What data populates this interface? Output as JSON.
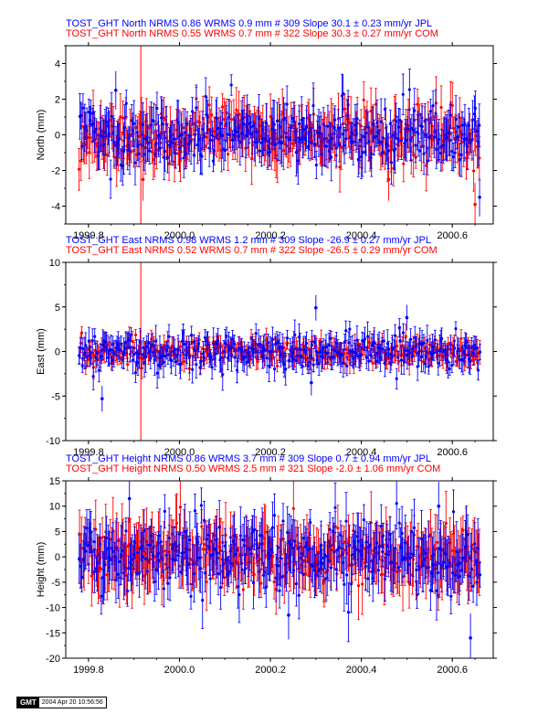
{
  "chart_data": [
    {
      "type": "scatter",
      "component": "North",
      "header_lines": [
        {
          "text": "TOST_GHT North NRMS 0.86 WRMS  0.9 mm # 309 Slope   30.1 ±  0.23 mm/yr JPL",
          "color": "#0000ff"
        },
        {
          "text": "TOST_GHT North NRMS 0.55 WRMS  0.7 mm # 322 Slope   30.3 ±  0.27 mm/yr COM",
          "color": "#ff0000"
        }
      ],
      "ylabel": "North (mm)",
      "xlim": [
        1999.75,
        2000.69
      ],
      "ylim": [
        -5,
        5
      ],
      "yticks": [
        -4,
        -2,
        0,
        2,
        4
      ],
      "xticks": [
        1999.8,
        2000.0,
        2000.2,
        2000.4,
        2000.6
      ],
      "xtick_labels": [
        "1999.8",
        "2000.0",
        "2000.2",
        "2000.4",
        "2000.6"
      ],
      "series": [
        {
          "n": 309,
          "color": "#0000ff",
          "scatter_sd": 0.8,
          "err": 0.9,
          "outliers": [
            [
              1999.86,
              2.5
            ],
            [
              2000.66,
              -3.5
            ],
            [
              2000.36,
              2.3
            ]
          ]
        },
        {
          "n": 322,
          "color": "#ff0000",
          "scatter_sd": 0.7,
          "err": 1.0,
          "outliers": [
            [
              1999.92,
              -2.5
            ],
            [
              2000.65,
              -3.9
            ],
            [
              2000.46,
              -2.5
            ]
          ]
        }
      ],
      "vertical_line": {
        "x": 1999.915,
        "color": "#ff0000"
      }
    },
    {
      "type": "scatter",
      "component": "East",
      "header_lines": [
        {
          "text": "TOST_GHT East NRMS 0.98 WRMS  1.2 mm # 309 Slope  -26.9 ±  0.27 mm/yr JPL",
          "color": "#0000ff"
        },
        {
          "text": "TOST_GHT East NRMS 0.52 WRMS  0.7 mm # 322 Slope  -26.5 ±  0.29 mm/yr COM",
          "color": "#ff0000"
        }
      ],
      "ylabel": "East (mm)",
      "xlim": [
        1999.75,
        2000.69
      ],
      "ylim": [
        -10,
        10
      ],
      "yticks": [
        -10,
        -5,
        0,
        5,
        10
      ],
      "xticks": [
        1999.8,
        2000.0,
        2000.2,
        2000.4,
        2000.6
      ],
      "xtick_labels": [
        "1999.8",
        "2000.0",
        "2000.2",
        "2000.4",
        "2000.6"
      ],
      "series": [
        {
          "n": 309,
          "color": "#0000ff",
          "scatter_sd": 1.1,
          "err": 1.2,
          "outliers": [
            [
              1999.83,
              -5.3
            ],
            [
              2000.3,
              4.9
            ],
            [
              2000.5,
              3.8
            ],
            [
              2000.29,
              -3.5
            ]
          ]
        },
        {
          "n": 322,
          "color": "#ff0000",
          "scatter_sd": 0.7,
          "err": 0.9,
          "outliers": []
        }
      ],
      "vertical_line": {
        "x": 1999.915,
        "color": "#ff0000"
      }
    },
    {
      "type": "scatter",
      "component": "Height",
      "header_lines": [
        {
          "text": "TOST_GHT Height NRMS 0.86 WRMS  3.7 mm # 309 Slope    0.7 ±  0.94 mm/yr JPL",
          "color": "#0000ff"
        },
        {
          "text": "TOST_GHT Height NRMS 0.50 WRMS  2.5 mm # 321 Slope   -2.0 ±  1.06 mm/yr COM",
          "color": "#ff0000"
        }
      ],
      "ylabel": "Height (mm)",
      "xlim": [
        1999.75,
        2000.69
      ],
      "ylim": [
        -20,
        15
      ],
      "yticks": [
        -20,
        -15,
        -10,
        -5,
        0,
        5,
        10,
        15
      ],
      "xticks": [
        1999.8,
        2000.0,
        2000.2,
        2000.4,
        2000.6
      ],
      "xtick_labels": [
        "1999.8",
        "2000.0",
        "2000.2",
        "2000.4",
        "2000.6"
      ],
      "series": [
        {
          "n": 309,
          "color": "#0000ff",
          "scatter_sd": 3.7,
          "err": 4.0,
          "outliers": [
            [
              1999.89,
              11.5
            ],
            [
              2000.64,
              -16.0
            ],
            [
              2000.24,
              -11.5
            ],
            [
              2000.57,
              10.0
            ]
          ]
        },
        {
          "n": 321,
          "color": "#ff0000",
          "scatter_sd": 2.5,
          "err": 4.5,
          "outliers": []
        }
      ]
    }
  ],
  "footer": {
    "logo": "GMT",
    "timestamp": "2004 Apr 20 10:56:56"
  }
}
